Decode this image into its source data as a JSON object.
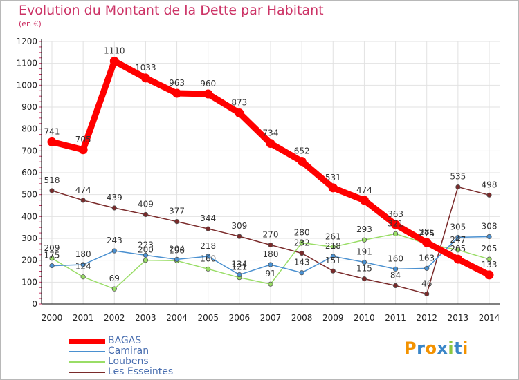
{
  "title": "Evolution du Montant de la Dette par Habitant",
  "subtitle": "(en €)",
  "logo": {
    "letters": [
      {
        "ch": "P",
        "color": "#f39200"
      },
      {
        "ch": "r",
        "color": "#3a86c8"
      },
      {
        "ch": "o",
        "color": "#f39200"
      },
      {
        "ch": "x",
        "color": "#3a86c8"
      },
      {
        "ch": "i",
        "color": "#8cc63f"
      },
      {
        "ch": "t",
        "color": "#3a86c8"
      },
      {
        "ch": "i",
        "color": "#f39200"
      }
    ]
  },
  "chart_data": {
    "type": "line",
    "title": "Evolution du Montant de la Dette par Habitant",
    "subtitle": "(en €)",
    "x": [
      2000,
      2001,
      2002,
      2003,
      2004,
      2005,
      2006,
      2007,
      2008,
      2009,
      2010,
      2011,
      2012,
      2013,
      2014
    ],
    "ylim": [
      0,
      1200
    ],
    "yticks": [
      0,
      100,
      200,
      300,
      400,
      500,
      600,
      700,
      800,
      900,
      1000,
      1100,
      1200
    ],
    "grid": true,
    "legend_position": "bottom-left",
    "series": [
      {
        "name": "BAGAS",
        "color": "#ff0000",
        "values": [
          741,
          705,
          1110,
          1033,
          963,
          960,
          873,
          734,
          652,
          531,
          474,
          363,
          281,
          205,
          133
        ]
      },
      {
        "name": "Camiran",
        "color": "#4a90d0",
        "values": [
          175,
          180,
          243,
          223,
          204,
          218,
          134,
          180,
          143,
          218,
          191,
          160,
          163,
          305,
          308
        ]
      },
      {
        "name": "Loubens",
        "color": "#99dd66",
        "values": [
          209,
          124,
          69,
          200,
          198,
          160,
          121,
          91,
          280,
          261,
          293,
          321,
          275,
          247,
          205
        ]
      },
      {
        "name": "Les Esseintes",
        "color": "#7a2a2a",
        "values": [
          518,
          474,
          439,
          409,
          377,
          344,
          309,
          270,
          232,
          151,
          115,
          84,
          46,
          535,
          498
        ]
      }
    ]
  }
}
